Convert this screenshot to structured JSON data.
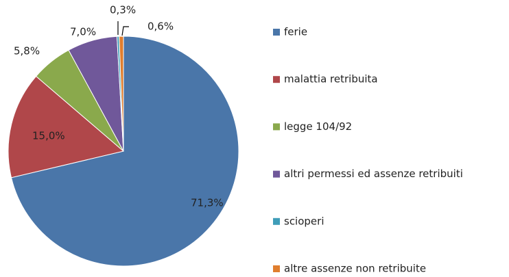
{
  "chart_data": {
    "type": "pie",
    "categories": [
      "ferie",
      "malattia retribuita",
      "legge 104/92",
      "altri permessi ed assenze retribuiti",
      "scioperi",
      "altre assenze non retribuite"
    ],
    "values": [
      71.3,
      15.0,
      5.8,
      7.0,
      0.3,
      0.6
    ],
    "value_labels": [
      "71,3%",
      "15,0%",
      "5,8%",
      "7,0%",
      "0,3%",
      "0,6%"
    ],
    "colors": [
      "#4a76a9",
      "#b0474a",
      "#8aa94c",
      "#70589a",
      "#3f9db8",
      "#e07e2e"
    ],
    "legend": "right"
  }
}
